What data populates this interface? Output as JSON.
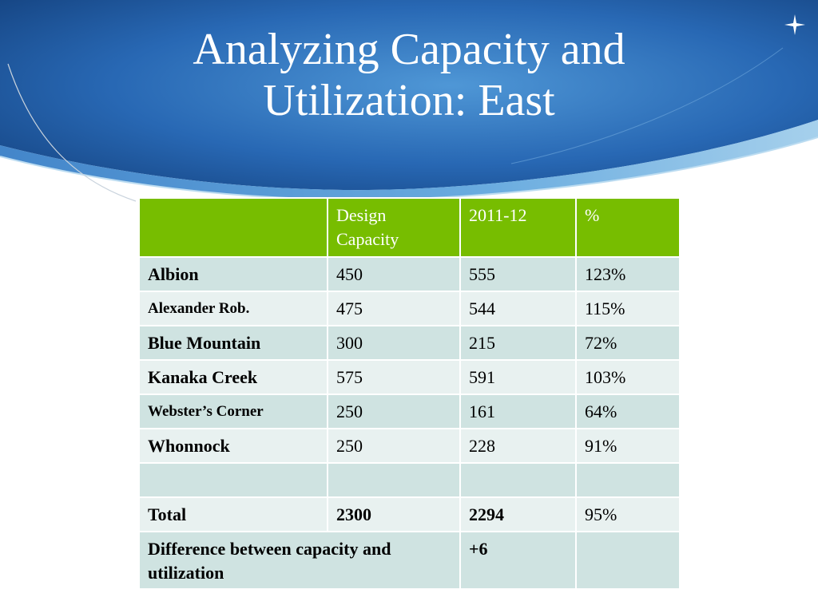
{
  "slide": {
    "title_line1": "Analyzing Capacity and",
    "title_line2": "Utilization: East",
    "icon": "star-burst-icon"
  },
  "table": {
    "headers": [
      "",
      "Design Capacity",
      "2011-12",
      "%"
    ],
    "rows": [
      {
        "name": "Albion",
        "design": "450",
        "year": "555",
        "pct": "123%"
      },
      {
        "name": "Alexander Rob.",
        "design": "475",
        "year": "544",
        "pct": "115%"
      },
      {
        "name": "Blue Mountain",
        "design": "300",
        "year": "215",
        "pct": "72%"
      },
      {
        "name": "Kanaka Creek",
        "design": "575",
        "year": "591",
        "pct": "103%"
      },
      {
        "name": "Webster’s Corner",
        "design": "250",
        "year": "161",
        "pct": "64%"
      },
      {
        "name": "Whonnock",
        "design": "250",
        "year": "228",
        "pct": "91%"
      }
    ],
    "total": {
      "name": "Total",
      "design": "2300",
      "year": "2294",
      "pct": "95%"
    },
    "difference": {
      "label": "Difference between capacity and utilization",
      "value": "+6"
    }
  },
  "colors": {
    "header_green": "#77bd00",
    "value_green": "#5aa000",
    "row_dark": "#cfe3e1",
    "row_light": "#e8f1f0",
    "banner_blue": "#1f5fa6"
  }
}
